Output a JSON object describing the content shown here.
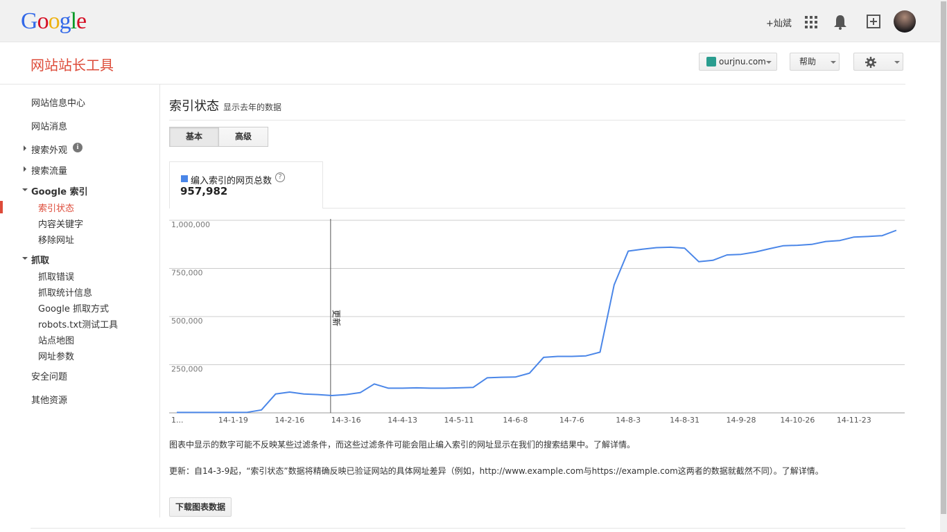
{
  "header": {
    "logo_letters": [
      {
        "ch": "G",
        "color": "#3369e8"
      },
      {
        "ch": "o",
        "color": "#d50f25"
      },
      {
        "ch": "o",
        "color": "#eeb211"
      },
      {
        "ch": "g",
        "color": "#3369e8"
      },
      {
        "ch": "l",
        "color": "#009925"
      },
      {
        "ch": "e",
        "color": "#d50f25"
      }
    ],
    "plus_user": "+灿斌",
    "icons": [
      "apps-icon",
      "bell-icon",
      "share-icon",
      "avatar"
    ]
  },
  "product_title": "网站站长工具",
  "toolbar": {
    "site_label": "ourjnu.com",
    "help_label": "帮助",
    "settings_icon": "gear-icon"
  },
  "sidebar": {
    "dashboard": "网站信息中心",
    "messages": "网站消息",
    "search_appearance": "搜索外观",
    "search_traffic": "搜索流量",
    "google_index": "Google 索引",
    "index_status": "索引状态",
    "content_keywords": "内容关键字",
    "remove_urls": "移除网址",
    "crawl": "抓取",
    "crawl_errors": "抓取错误",
    "crawl_stats": "抓取统计信息",
    "fetch_as_google": "Google 抓取方式",
    "robots_tester": "robots.txt测试工具",
    "sitemaps": "站点地图",
    "url_parameters": "网址参数",
    "security_issues": "安全问题",
    "other_resources": "其他资源"
  },
  "main": {
    "title": "索引状态",
    "subtitle": "显示去年的数据",
    "tabs": [
      "基本",
      "高级"
    ],
    "selected_tab": 0,
    "metric_label": "编入索引的网页总数",
    "metric_value": "957,982",
    "metric_color": "#4a86e8",
    "note_1": "图表中显示的数字可能不反映某些过滤条件，而这些过滤条件可能会阻止编入索引的网址显示在我们的搜索结果中。了解详情。",
    "note_2": "更新：自14-3-9起，“索引状态”数据将精确反映已验证网站的具体网址差异（例如，http://www.example.com与https://example.com这两者的数据就截然不同）。了解详情。",
    "download_label": "下载图表数据"
  },
  "chart_data": {
    "type": "line",
    "series": [
      {
        "name": "编入索引的网页总数",
        "color": "#4a86e8",
        "x_index": [
          0,
          1,
          2,
          3,
          4,
          5,
          6,
          7,
          8,
          9,
          10,
          11,
          12,
          13,
          14,
          15,
          16,
          17,
          18,
          19,
          20,
          21,
          22,
          23,
          24,
          25,
          26,
          27,
          28,
          29,
          30,
          31,
          32,
          33,
          34,
          35,
          36,
          37,
          38,
          39,
          40,
          41,
          42,
          43,
          44,
          45,
          46,
          47,
          48,
          49,
          50,
          51
        ],
        "values": [
          2000,
          2000,
          2000,
          2000,
          2000,
          3000,
          15000,
          98000,
          108000,
          98000,
          95000,
          90000,
          95000,
          105000,
          150000,
          128000,
          128000,
          130000,
          128000,
          128000,
          130000,
          132000,
          182000,
          185000,
          186000,
          206000,
          288000,
          293000,
          293000,
          296000,
          315000,
          665000,
          840000,
          850000,
          858000,
          860000,
          855000,
          785000,
          792000,
          820000,
          823000,
          835000,
          852000,
          868000,
          870000,
          875000,
          890000,
          895000,
          913000,
          916000,
          920000,
          948000
        ]
      }
    ],
    "x_tick_labels": [
      "1...",
      "14-1-19",
      "14-2-16",
      "14-3-16",
      "14-4-13",
      "14-5-11",
      "14-6-8",
      "14-7-6",
      "14-8-3",
      "14-8-31",
      "14-9-28",
      "14-10-26",
      "14-11-23"
    ],
    "x_tick_index": [
      0,
      4,
      8,
      12,
      16,
      20,
      24,
      28,
      32,
      36,
      40,
      44,
      48
    ],
    "y_ticks": [
      250000,
      500000,
      750000,
      1000000
    ],
    "y_tick_labels": [
      "250,000",
      "500,000",
      "750,000",
      "1,000,000"
    ],
    "ylim": [
      0,
      1000000
    ],
    "annotation": {
      "label": "更新",
      "x_index": 11
    },
    "grid": true,
    "legend": "none"
  }
}
